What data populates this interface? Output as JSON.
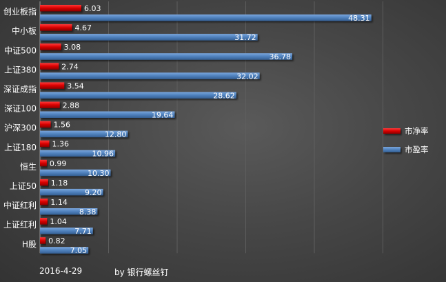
{
  "chart_data": {
    "type": "bar",
    "orientation": "horizontal",
    "categories": [
      "创业板指",
      "中小板",
      "中证500",
      "上证380",
      "深证成指",
      "深证100",
      "沪深300",
      "上证180",
      "恒生",
      "上证50",
      "中证红利",
      "上证红利",
      "H股"
    ],
    "series": [
      {
        "name": "市净率",
        "values": [
          6.03,
          4.67,
          3.08,
          2.74,
          3.54,
          2.88,
          1.56,
          1.36,
          0.99,
          1.18,
          1.14,
          1.04,
          0.82
        ],
        "labels": [
          "6.03",
          "4.67",
          "3.08",
          "2.74",
          "3.54",
          "2.88",
          "1.56",
          "1.36",
          "0.99",
          "1.18",
          "1.14",
          "1.04",
          "0.82"
        ],
        "color": "#e00000"
      },
      {
        "name": "市盈率",
        "values": [
          48.31,
          31.72,
          36.78,
          32.02,
          28.62,
          19.64,
          12.8,
          10.96,
          10.3,
          9.2,
          8.38,
          7.71,
          7.05
        ],
        "labels": [
          "48.31",
          "31.72",
          "36.78",
          "32.02",
          "28.62",
          "19.64",
          "12.80",
          "10.96",
          "10.30",
          "9.20",
          "8.38",
          "7.71",
          "7.05"
        ],
        "color": "#4f81bd"
      }
    ],
    "xlim": [
      0,
      60
    ],
    "grid": true,
    "legend_position": "right"
  },
  "footer": {
    "date": "2016-4-29",
    "credit": "by 银行螺丝钉"
  }
}
